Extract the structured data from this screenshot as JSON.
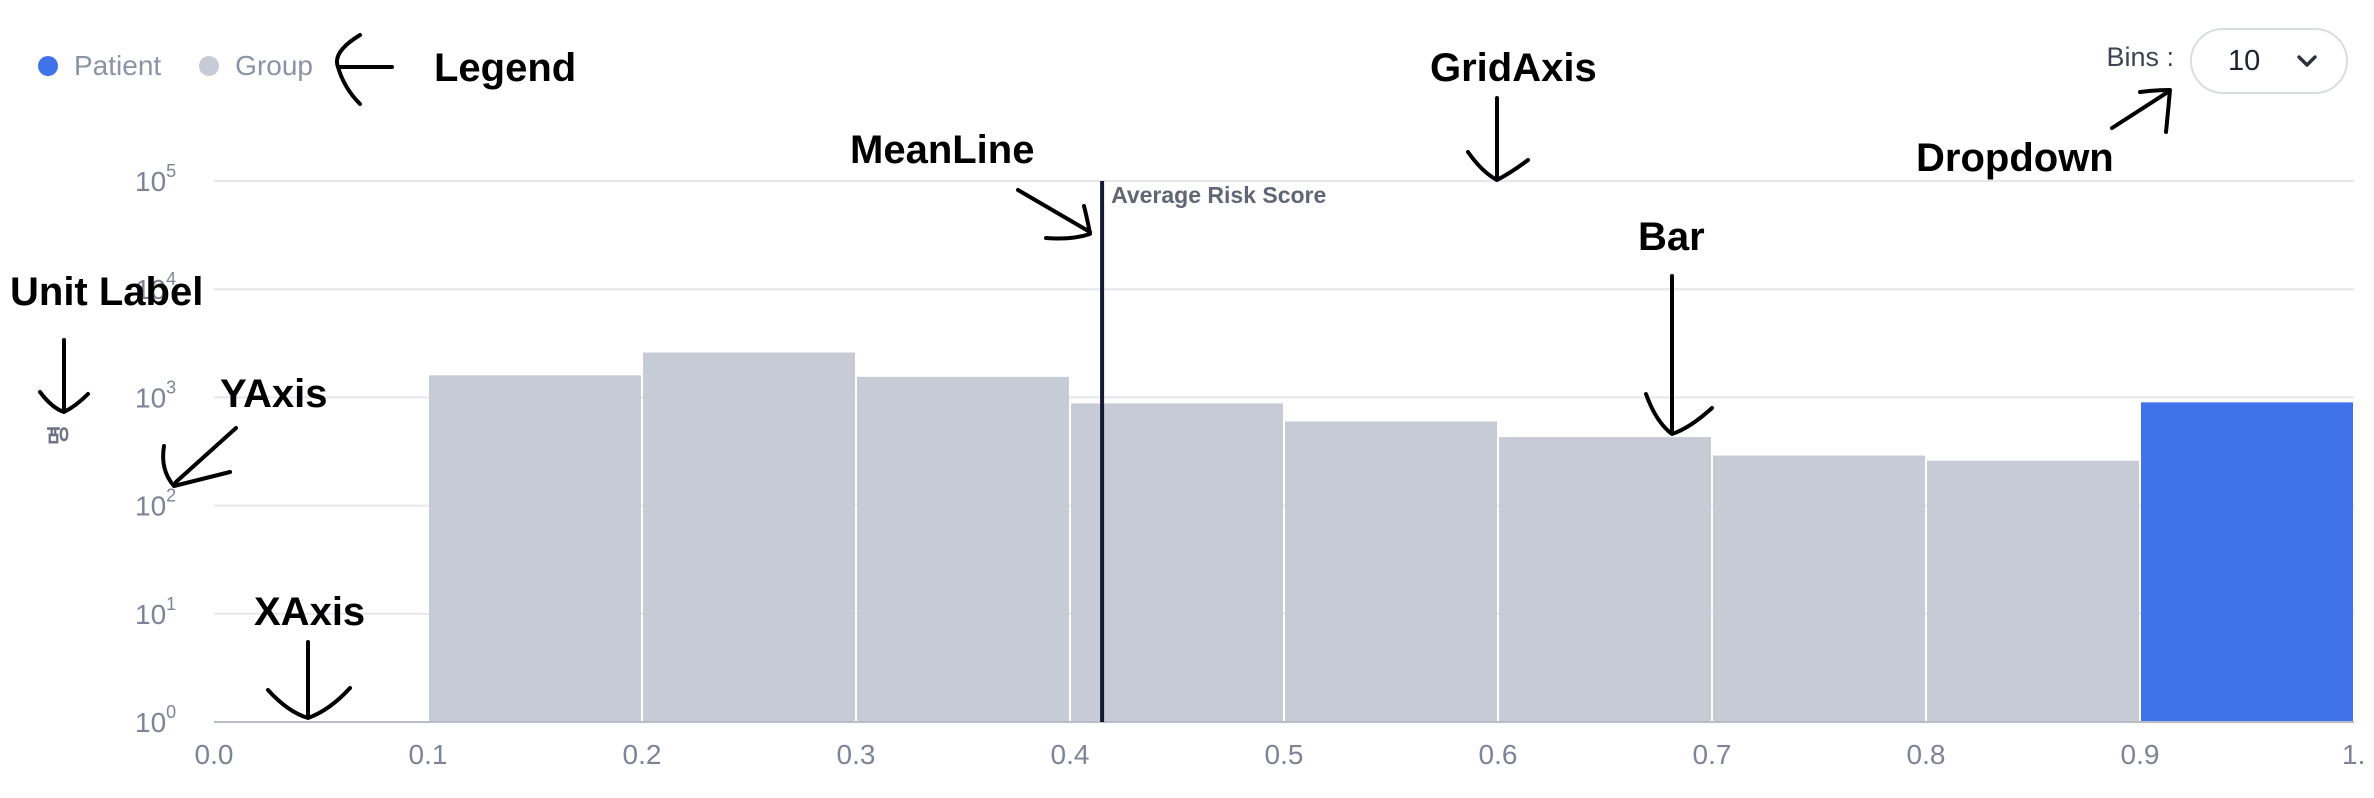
{
  "legend": {
    "patient_label": "Patient",
    "group_label": "Group",
    "patient_color": "#3f72eb",
    "group_color": "#c7cbd6"
  },
  "controls": {
    "bins_label": "Bins :",
    "bins_value": "10"
  },
  "chart_data": {
    "type": "bar",
    "y_scale": "log",
    "ylim": [
      1,
      100000
    ],
    "xlim": [
      0,
      1
    ],
    "ylabel": "명",
    "y_ticks": [
      {
        "base": "10",
        "exp": "0"
      },
      {
        "base": "10",
        "exp": "1"
      },
      {
        "base": "10",
        "exp": "2"
      },
      {
        "base": "10",
        "exp": "3"
      },
      {
        "base": "10",
        "exp": "4"
      },
      {
        "base": "10",
        "exp": "5"
      }
    ],
    "x_ticks": [
      "0.0",
      "0.1",
      "0.2",
      "0.3",
      "0.4",
      "0.5",
      "0.6",
      "0.7",
      "0.8",
      "0.9",
      "1."
    ],
    "bins": [
      {
        "start": 0.0,
        "end": 0.1,
        "value": 1,
        "series": "Group"
      },
      {
        "start": 0.1,
        "end": 0.2,
        "value": 1600,
        "series": "Group"
      },
      {
        "start": 0.2,
        "end": 0.3,
        "value": 2600,
        "series": "Group"
      },
      {
        "start": 0.3,
        "end": 0.4,
        "value": 1550,
        "series": "Group"
      },
      {
        "start": 0.4,
        "end": 0.5,
        "value": 880,
        "series": "Group"
      },
      {
        "start": 0.5,
        "end": 0.6,
        "value": 600,
        "series": "Group"
      },
      {
        "start": 0.6,
        "end": 0.7,
        "value": 430,
        "series": "Group"
      },
      {
        "start": 0.7,
        "end": 0.8,
        "value": 290,
        "series": "Group"
      },
      {
        "start": 0.8,
        "end": 0.9,
        "value": 260,
        "series": "Group"
      },
      {
        "start": 0.9,
        "end": 1.0,
        "value": 900,
        "series": "Patient"
      }
    ],
    "mean_line": {
      "x": 0.415,
      "label": "Average Risk Score"
    },
    "grid": true,
    "legend_position": "top-left"
  },
  "annotations": {
    "legend": "Legend",
    "grid_axis": "GridAxis",
    "mean_line": "MeanLine",
    "dropdown": "Dropdown",
    "unit_label": "Unit Label",
    "y_axis": "YAxis",
    "bar": "Bar",
    "x_axis": "XAxis"
  }
}
